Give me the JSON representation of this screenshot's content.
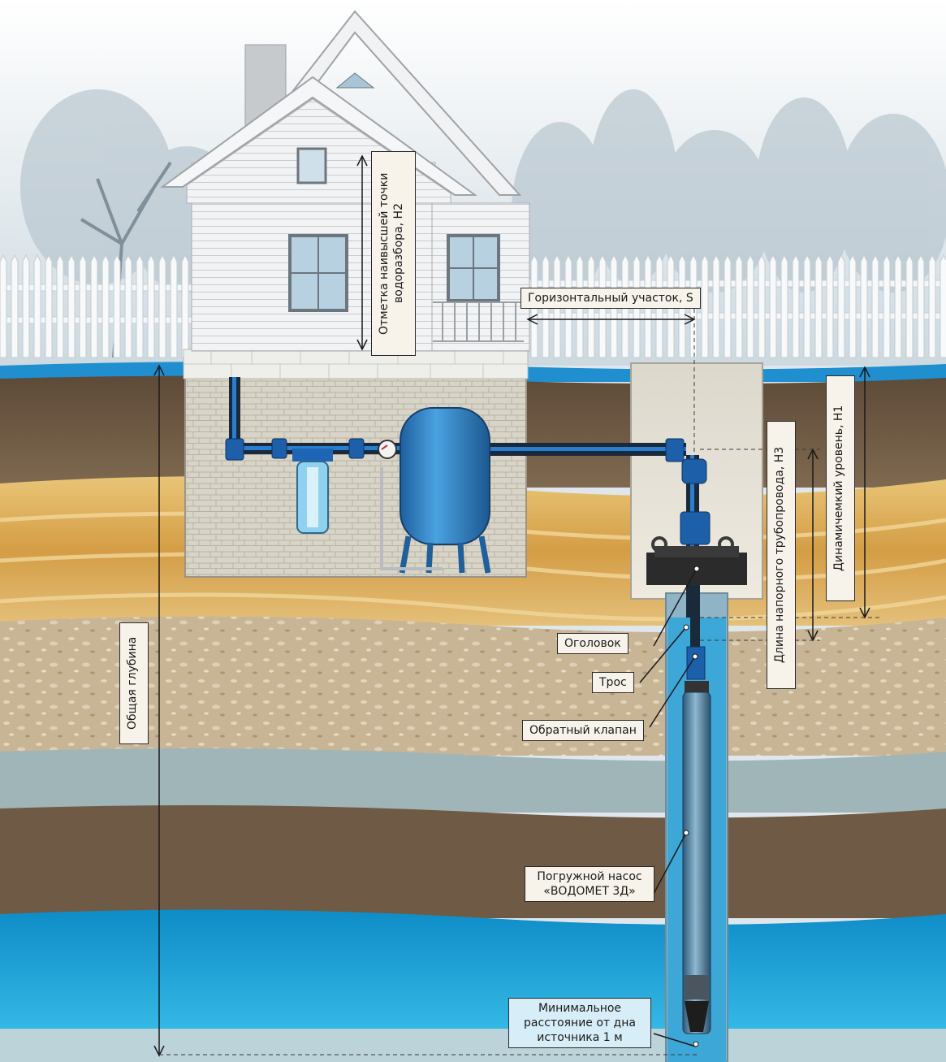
{
  "labels": {
    "h2_line1": "Отметка наивысшей точки",
    "h2_line2": "водоразбора, Н2",
    "horizontal_s": "Горизонтальный участок, S",
    "dynamic_h1": "Динамичемкий уровень, Н1",
    "pipe_length_h3": "Длина напорного трубопровода, Н3",
    "total_depth": "Общая глубина",
    "head": "Оголовок",
    "cable": "Трос",
    "check_valve": "Обратный клапан",
    "pump_line1": "Погружной насос",
    "pump_line2": "«ВОДОМЕТ 3Д»",
    "min_line1": "Минимальное",
    "min_line2": "расстояние от дна",
    "min_line3": "источника 1 м"
  },
  "colors": {
    "sky": "#e4ebef",
    "topsoil": "#7a6146",
    "sand": "#d7ad5a",
    "gravel": "#c9b595",
    "clay": "#6f5a45",
    "water_layer": "#1fa6d8",
    "pipe_blue": "#1d6fc4",
    "tank_blue": "#2a7fc9",
    "label_bg": "#f7f3ea"
  }
}
